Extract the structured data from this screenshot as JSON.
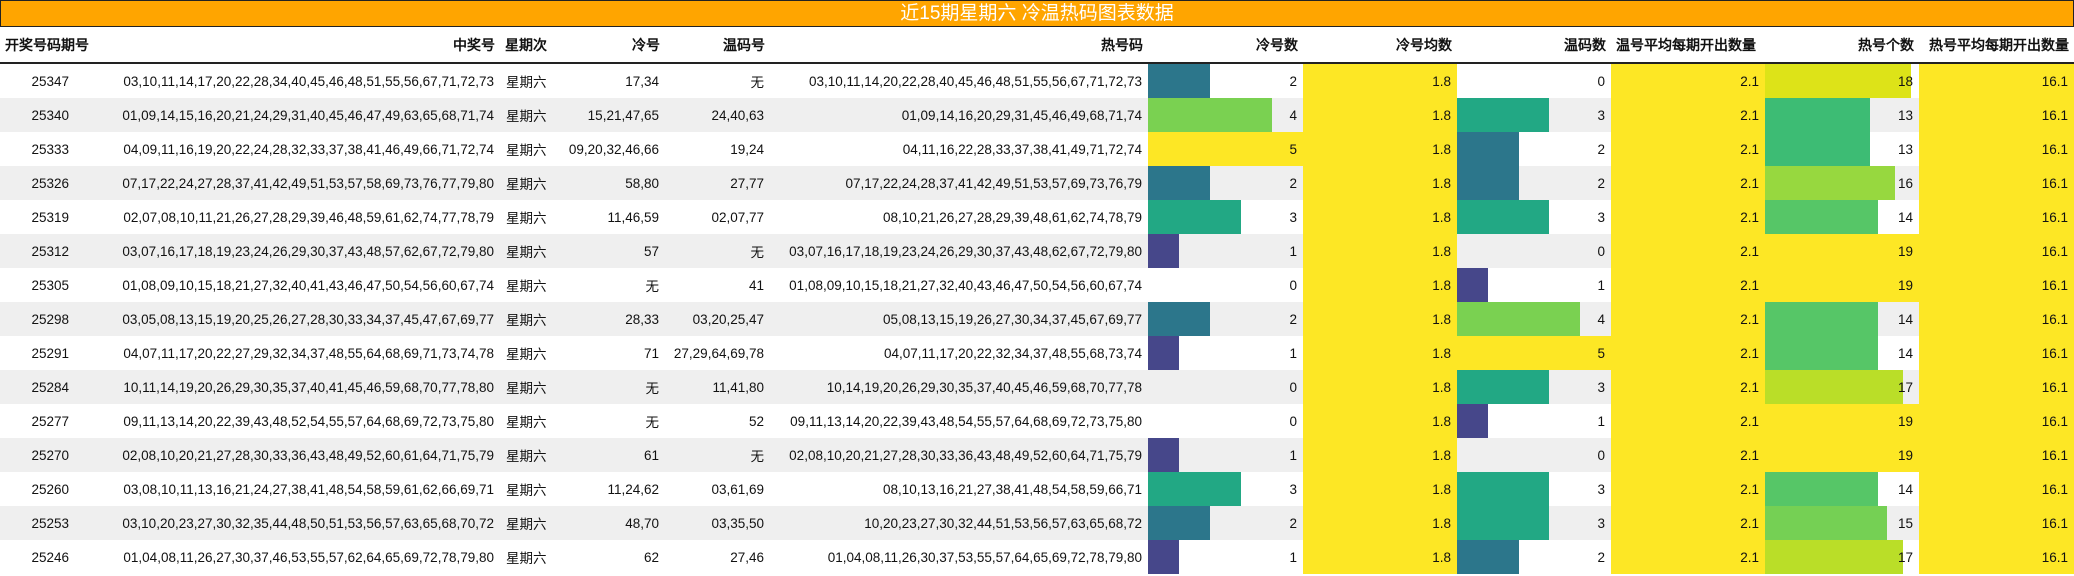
{
  "title": "近15期星期六 冷温热码图表数据",
  "colors": {
    "title_bg": "#ffa500",
    "avg_bg": "#fde725",
    "bar_scale": {
      "1": "#46478a",
      "2": "#2c768b",
      "3": "#22a884",
      "4": "#7ad151",
      "5": "#fde725"
    },
    "hot_bar_scale": {
      "13": "#3dbc74",
      "14": "#56c667",
      "15": "#75d054",
      "16": "#97d83f",
      "17": "#bade28",
      "18": "#dde318",
      "19": "#fde725"
    }
  },
  "headers": [
    "开奖号码期号",
    "中奖号",
    "星期次",
    "冷号",
    "温码号",
    "热号码",
    "冷号数",
    "冷号均数",
    "温码数",
    "温号平均每期开出数量",
    "热号个数",
    "热号平均每期开出数量"
  ],
  "rows": [
    {
      "period": "25347",
      "winning": "03,10,11,14,17,20,22,28,34,40,45,46,48,51,55,56,67,71,72,73",
      "weekday": "星期六",
      "cold": "17,34",
      "warm": "无",
      "hot": "03,10,11,14,20,22,28,40,45,46,48,51,55,56,67,71,72,73",
      "cold_count": 2,
      "cold_avg": "1.8",
      "warm_count": 0,
      "warm_avg": "2.1",
      "hot_count": 18,
      "hot_avg": "16.1"
    },
    {
      "period": "25340",
      "winning": "01,09,14,15,16,20,21,24,29,31,40,45,46,47,49,63,65,68,71,74",
      "weekday": "星期六",
      "cold": "15,21,47,65",
      "warm": "24,40,63",
      "hot": "01,09,14,16,20,29,31,45,46,49,68,71,74",
      "cold_count": 4,
      "cold_avg": "1.8",
      "warm_count": 3,
      "warm_avg": "2.1",
      "hot_count": 13,
      "hot_avg": "16.1"
    },
    {
      "period": "25333",
      "winning": "04,09,11,16,19,20,22,24,28,32,33,37,38,41,46,49,66,71,72,74",
      "weekday": "星期六",
      "cold": "09,20,32,46,66",
      "warm": "19,24",
      "hot": "04,11,16,22,28,33,37,38,41,49,71,72,74",
      "cold_count": 5,
      "cold_avg": "1.8",
      "warm_count": 2,
      "warm_avg": "2.1",
      "hot_count": 13,
      "hot_avg": "16.1"
    },
    {
      "period": "25326",
      "winning": "07,17,22,24,27,28,37,41,42,49,51,53,57,58,69,73,76,77,79,80",
      "weekday": "星期六",
      "cold": "58,80",
      "warm": "27,77",
      "hot": "07,17,22,24,28,37,41,42,49,51,53,57,69,73,76,79",
      "cold_count": 2,
      "cold_avg": "1.8",
      "warm_count": 2,
      "warm_avg": "2.1",
      "hot_count": 16,
      "hot_avg": "16.1"
    },
    {
      "period": "25319",
      "winning": "02,07,08,10,11,21,26,27,28,29,39,46,48,59,61,62,74,77,78,79",
      "weekday": "星期六",
      "cold": "11,46,59",
      "warm": "02,07,77",
      "hot": "08,10,21,26,27,28,29,39,48,61,62,74,78,79",
      "cold_count": 3,
      "cold_avg": "1.8",
      "warm_count": 3,
      "warm_avg": "2.1",
      "hot_count": 14,
      "hot_avg": "16.1"
    },
    {
      "period": "25312",
      "winning": "03,07,16,17,18,19,23,24,26,29,30,37,43,48,57,62,67,72,79,80",
      "weekday": "星期六",
      "cold": "57",
      "warm": "无",
      "hot": "03,07,16,17,18,19,23,24,26,29,30,37,43,48,62,67,72,79,80",
      "cold_count": 1,
      "cold_avg": "1.8",
      "warm_count": 0,
      "warm_avg": "2.1",
      "hot_count": 19,
      "hot_avg": "16.1"
    },
    {
      "period": "25305",
      "winning": "01,08,09,10,15,18,21,27,32,40,41,43,46,47,50,54,56,60,67,74",
      "weekday": "星期六",
      "cold": "无",
      "warm": "41",
      "hot": "01,08,09,10,15,18,21,27,32,40,43,46,47,50,54,56,60,67,74",
      "cold_count": 0,
      "cold_avg": "1.8",
      "warm_count": 1,
      "warm_avg": "2.1",
      "hot_count": 19,
      "hot_avg": "16.1"
    },
    {
      "period": "25298",
      "winning": "03,05,08,13,15,19,20,25,26,27,28,30,33,34,37,45,47,67,69,77",
      "weekday": "星期六",
      "cold": "28,33",
      "warm": "03,20,25,47",
      "hot": "05,08,13,15,19,26,27,30,34,37,45,67,69,77",
      "cold_count": 2,
      "cold_avg": "1.8",
      "warm_count": 4,
      "warm_avg": "2.1",
      "hot_count": 14,
      "hot_avg": "16.1"
    },
    {
      "period": "25291",
      "winning": "04,07,11,17,20,22,27,29,32,34,37,48,55,64,68,69,71,73,74,78",
      "weekday": "星期六",
      "cold": "71",
      "warm": "27,29,64,69,78",
      "hot": "04,07,11,17,20,22,32,34,37,48,55,68,73,74",
      "cold_count": 1,
      "cold_avg": "1.8",
      "warm_count": 5,
      "warm_avg": "2.1",
      "hot_count": 14,
      "hot_avg": "16.1"
    },
    {
      "period": "25284",
      "winning": "10,11,14,19,20,26,29,30,35,37,40,41,45,46,59,68,70,77,78,80",
      "weekday": "星期六",
      "cold": "无",
      "warm": "11,41,80",
      "hot": "10,14,19,20,26,29,30,35,37,40,45,46,59,68,70,77,78",
      "cold_count": 0,
      "cold_avg": "1.8",
      "warm_count": 3,
      "warm_avg": "2.1",
      "hot_count": 17,
      "hot_avg": "16.1"
    },
    {
      "period": "25277",
      "winning": "09,11,13,14,20,22,39,43,48,52,54,55,57,64,68,69,72,73,75,80",
      "weekday": "星期六",
      "cold": "无",
      "warm": "52",
      "hot": "09,11,13,14,20,22,39,43,48,54,55,57,64,68,69,72,73,75,80",
      "cold_count": 0,
      "cold_avg": "1.8",
      "warm_count": 1,
      "warm_avg": "2.1",
      "hot_count": 19,
      "hot_avg": "16.1"
    },
    {
      "period": "25270",
      "winning": "02,08,10,20,21,27,28,30,33,36,43,48,49,52,60,61,64,71,75,79",
      "weekday": "星期六",
      "cold": "61",
      "warm": "无",
      "hot": "02,08,10,20,21,27,28,30,33,36,43,48,49,52,60,64,71,75,79",
      "cold_count": 1,
      "cold_avg": "1.8",
      "warm_count": 0,
      "warm_avg": "2.1",
      "hot_count": 19,
      "hot_avg": "16.1"
    },
    {
      "period": "25260",
      "winning": "03,08,10,11,13,16,21,24,27,38,41,48,54,58,59,61,62,66,69,71",
      "weekday": "星期六",
      "cold": "11,24,62",
      "warm": "03,61,69",
      "hot": "08,10,13,16,21,27,38,41,48,54,58,59,66,71",
      "cold_count": 3,
      "cold_avg": "1.8",
      "warm_count": 3,
      "warm_avg": "2.1",
      "hot_count": 14,
      "hot_avg": "16.1"
    },
    {
      "period": "25253",
      "winning": "03,10,20,23,27,30,32,35,44,48,50,51,53,56,57,63,65,68,70,72",
      "weekday": "星期六",
      "cold": "48,70",
      "warm": "03,35,50",
      "hot": "10,20,23,27,30,32,44,51,53,56,57,63,65,68,72",
      "cold_count": 2,
      "cold_avg": "1.8",
      "warm_count": 3,
      "warm_avg": "2.1",
      "hot_count": 15,
      "hot_avg": "16.1"
    },
    {
      "period": "25246",
      "winning": "01,04,08,11,26,27,30,37,46,53,55,57,62,64,65,69,72,78,79,80",
      "weekday": "星期六",
      "cold": "62",
      "warm": "27,46",
      "hot": "01,04,08,11,26,30,37,53,55,57,64,65,69,72,78,79,80",
      "cold_count": 1,
      "cold_avg": "1.8",
      "warm_count": 2,
      "warm_avg": "2.1",
      "hot_count": 17,
      "hot_avg": "16.1"
    }
  ]
}
